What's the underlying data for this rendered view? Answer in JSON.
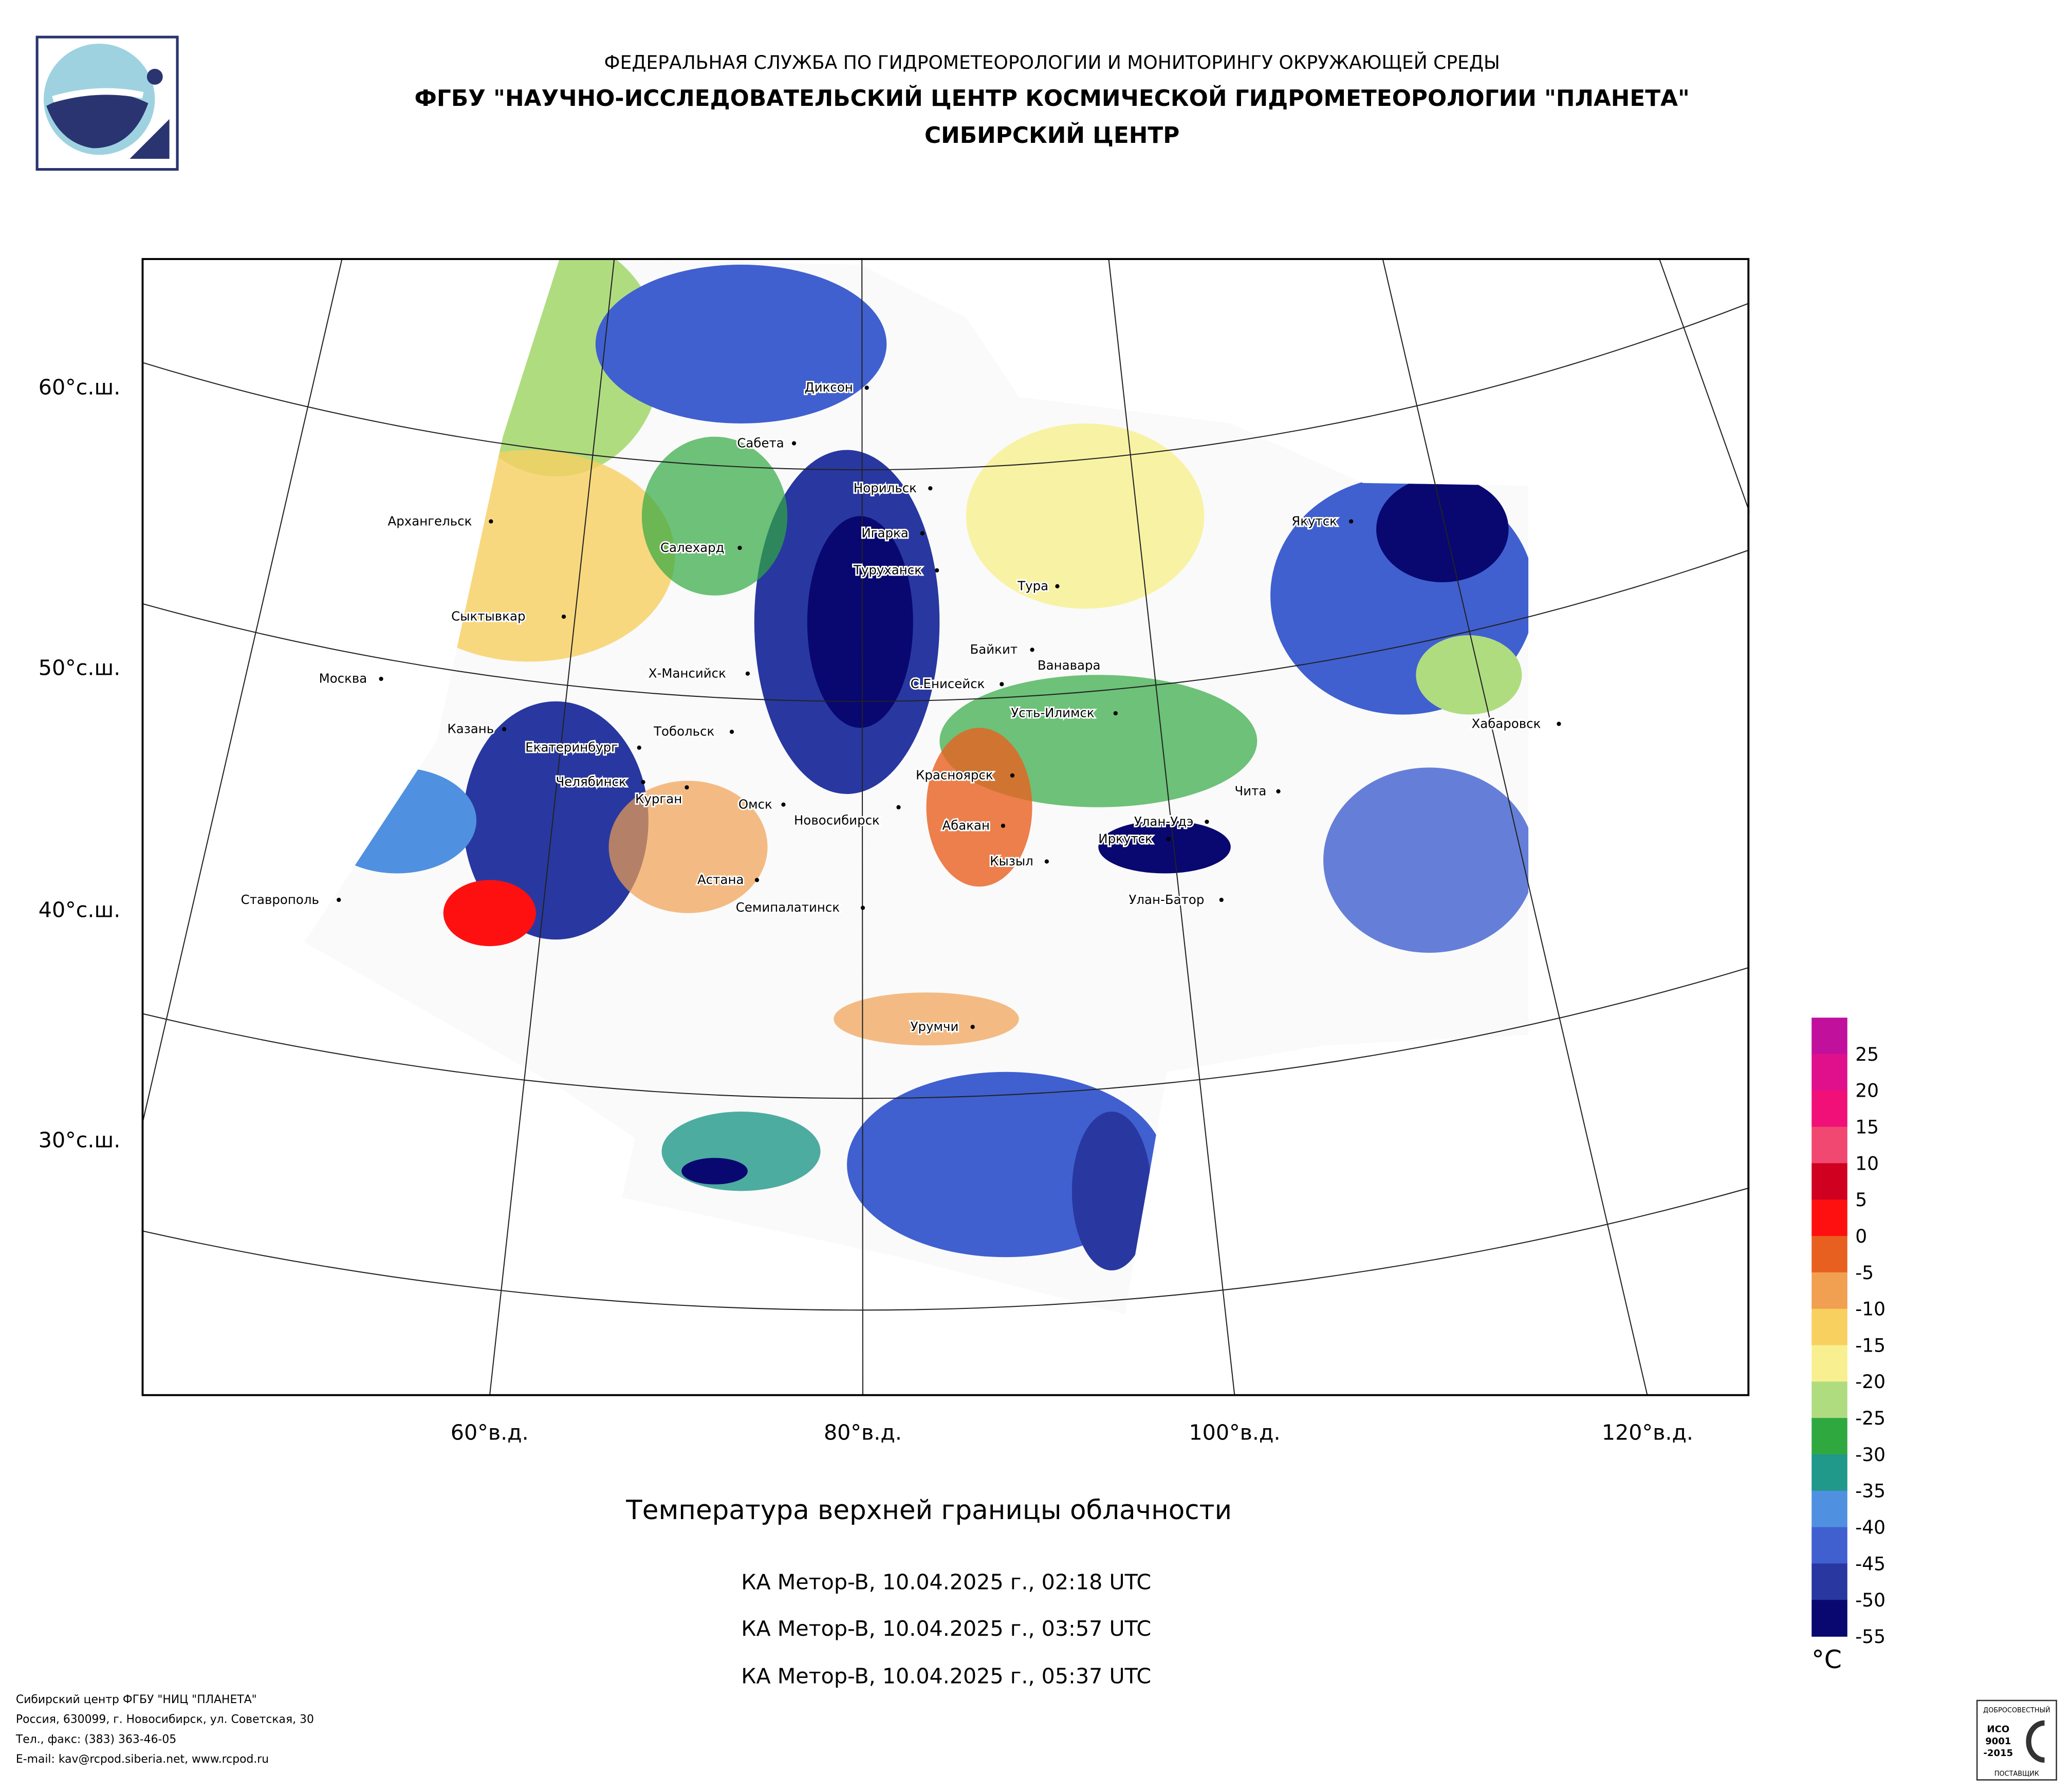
{
  "header": {
    "line1": "ФЕДЕРАЛЬНАЯ СЛУЖБА ПО ГИДРОМЕТЕОРОЛОГИИ И МОНИТОРИНГУ ОКРУЖАЮЩЕЙ СРЕДЫ",
    "line2": "ФГБУ \"НАУЧНО-ИССЛЕДОВАТЕЛЬСКИЙ ЦЕНТР КОСМИЧЕСКОЙ ГИДРОМЕТЕОРОЛОГИИ \"ПЛАНЕТА\"",
    "line3": "СИБИРСКИЙ ЦЕНТР"
  },
  "map": {
    "lat_labels": [
      "60°с.ш.",
      "50°с.ш.",
      "40°с.ш.",
      "30°с.ш."
    ],
    "lon_labels": [
      "60°в.д.",
      "80°в.д.",
      "100°в.д.",
      "120°в.д."
    ],
    "cities": [
      "Диксон",
      "Сабета",
      "Норильск",
      "Архангельск",
      "Игарка",
      "Салехард",
      "Туруханск",
      "Тура",
      "Якутск",
      "Сыктывкар",
      "Байкит",
      "Ванавара",
      "Москва",
      "Х-Мансийск",
      "С.Енисейск",
      "Усть-Илимск",
      "Хабаровск",
      "Казань",
      "Тобольск",
      "Екатеринбург",
      "Красноярск",
      "Челябинск",
      "Курган",
      "Чита",
      "Омск",
      "Новосибирск",
      "Абакан",
      "Улан-Удэ",
      "Иркутск",
      "Кызыл",
      "Астана",
      "Ставрополь",
      "Улан-Батор",
      "Семипалатинск",
      "Урумчи"
    ]
  },
  "legend": {
    "unit": "°C",
    "ticks": [
      "25",
      "20",
      "15",
      "10",
      "5",
      "0",
      "-5",
      "-10",
      "-15",
      "-20",
      "-25",
      "-30",
      "-35",
      "-40",
      "-45",
      "-50",
      "-55"
    ],
    "colors": [
      "#c0109c",
      "#e0108c",
      "#f01078",
      "#f04870",
      "#d00020",
      "#ff1010",
      "#e86020",
      "#f0a050",
      "#f8d060",
      "#f8f090",
      "#b0dc80",
      "#30a840",
      "#20988a",
      "#5090e0",
      "#4060d0",
      "#2838a0",
      "#080870"
    ]
  },
  "title": "Температура верхней границы облачности",
  "passes": [
    "КА Meтop-B, 10.04.2025 г., 02:18 UTC",
    "КА Meтop-B, 10.04.2025 г., 03:57 UTC",
    "КА Meтop-B, 10.04.2025 г., 05:37 UTC"
  ],
  "footer": [
    "Сибирский центр ФГБУ \"НИЦ \"ПЛАНЕТА\"",
    "Россия, 630099, г. Новосибирск, ул. Советская, 30",
    "Тел., факс: (383) 363-46-05",
    "E-mail: kav@rcpod.siberia.net, www.rcpod.ru"
  ],
  "badge": {
    "top": "ДОБРОСОВЕСТНЫЙ",
    "line1": "ИСО",
    "line2": "9001",
    "line3": "-2015",
    "bottom": "ПОСТАВЩИК"
  }
}
